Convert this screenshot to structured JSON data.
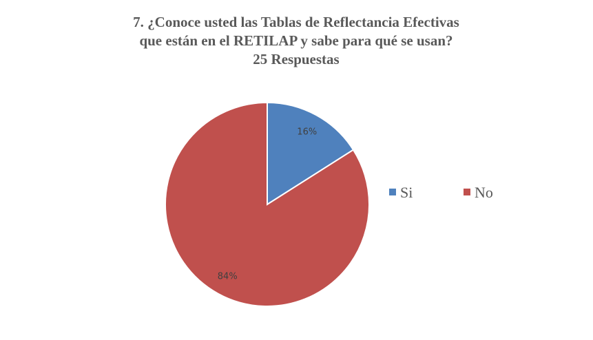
{
  "chart_data": {
    "type": "pie",
    "title": [
      "7. ¿Conoce usted las Tablas de Reflectancia Efectivas",
      "que están en el RETILAP y sabe para qué se usan?",
      "25 Respuestas"
    ],
    "categories": [
      "Si",
      "No"
    ],
    "values": [
      16,
      84
    ],
    "value_labels": [
      "16%",
      "84%"
    ],
    "colors": [
      "#4f81bd",
      "#c0504d"
    ],
    "legend": "right"
  }
}
